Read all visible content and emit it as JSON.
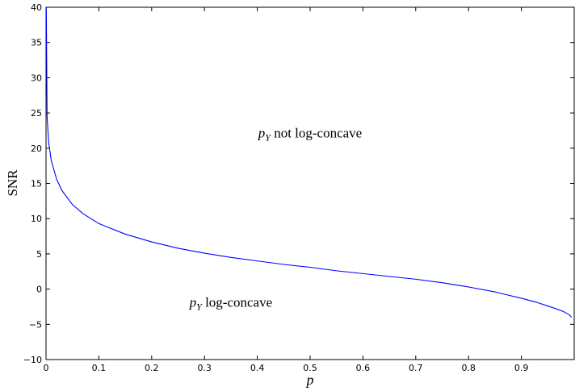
{
  "chart_data": {
    "type": "line",
    "title": "",
    "xlabel": "p",
    "ylabel": "SNR",
    "xlim": [
      0,
      1
    ],
    "ylim": [
      -10,
      40
    ],
    "grid": false,
    "x_ticks": [
      0,
      0.1,
      0.2,
      0.3,
      0.4,
      0.5,
      0.6,
      0.7,
      0.8,
      0.9
    ],
    "x_tick_labels": [
      "0",
      "0.1",
      "0.2",
      "0.3",
      "0.4",
      "0.5",
      "0.6",
      "0.7",
      "0.8",
      "0.9"
    ],
    "y_ticks": [
      -10,
      -5,
      0,
      5,
      10,
      15,
      20,
      25,
      30,
      35,
      40
    ],
    "y_tick_labels": [
      "−10",
      "−5",
      "0",
      "5",
      "10",
      "15",
      "20",
      "25",
      "30",
      "35",
      "40"
    ],
    "series": [
      {
        "color": "#0000ff",
        "x": [
          0.0005,
          0.002,
          0.005,
          0.01,
          0.02,
          0.03,
          0.05,
          0.07,
          0.1,
          0.15,
          0.2,
          0.25,
          0.3,
          0.35,
          0.4,
          0.45,
          0.5,
          0.55,
          0.6,
          0.65,
          0.7,
          0.75,
          0.8,
          0.85,
          0.9,
          0.93,
          0.95,
          0.97,
          0.98,
          0.99,
          0.995
        ],
        "y": [
          40,
          24.5,
          20.8,
          18.2,
          15.6,
          14.0,
          12.0,
          10.7,
          9.3,
          7.8,
          6.7,
          5.8,
          5.1,
          4.5,
          4.0,
          3.5,
          3.1,
          2.6,
          2.2,
          1.8,
          1.4,
          0.9,
          0.3,
          -0.4,
          -1.3,
          -1.9,
          -2.4,
          -2.9,
          -3.2,
          -3.6,
          -4.0
        ]
      }
    ],
    "annotations": [
      {
        "text_main": "p",
        "text_sub": "Y",
        "text_rest": " not log-concave",
        "x": 0.5,
        "y": 21.5
      },
      {
        "text_main": "p",
        "text_sub": "Y",
        "text_rest": " log-concave",
        "x": 0.35,
        "y": -2.5
      }
    ]
  }
}
